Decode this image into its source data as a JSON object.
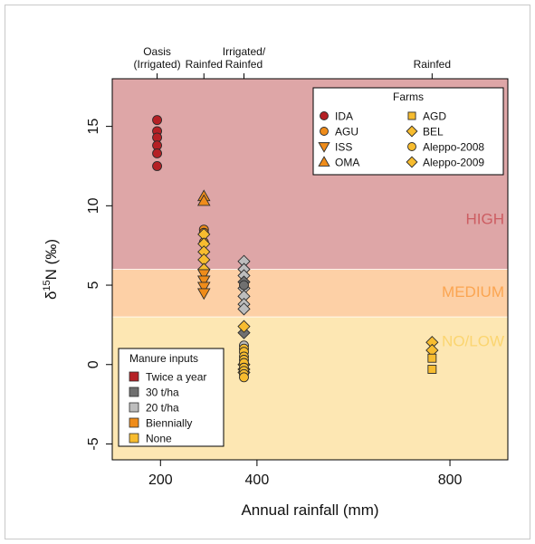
{
  "chart_data": {
    "type": "scatter",
    "xlabel": "Annual rainfall (mm)",
    "ylabel": {
      "prefix": "δ",
      "sup": "15",
      "suffix": "N (‰)"
    },
    "xlim": [
      100,
      920
    ],
    "ylim": [
      -6,
      18
    ],
    "x_ticks": [
      200,
      400,
      800
    ],
    "y_ticks": [
      -5,
      0,
      5,
      10,
      15
    ],
    "grid": false,
    "top_axis_labels": [
      {
        "x": 193,
        "lines": [
          "Oasis",
          "(Irrigated)"
        ]
      },
      {
        "x": 290,
        "lines": [
          "Rainfed"
        ]
      },
      {
        "x": 373,
        "lines": [
          "Irrigated/",
          "Rainfed"
        ]
      },
      {
        "x": 763,
        "lines": [
          "Rainfed"
        ]
      }
    ],
    "zones": [
      {
        "label": "HIGH",
        "from": 6,
        "to": 18,
        "color": "#dea6a7",
        "label_color": "#cc5d62"
      },
      {
        "label": "MEDIUM",
        "from": 3,
        "to": 6,
        "color": "#fdd0a6",
        "label_color": "#fba551"
      },
      {
        "label": "NO/LOW",
        "from": -6,
        "to": 3,
        "color": "#fde7b3",
        "label_color": "#fbd570"
      }
    ],
    "farms_legend": {
      "title": "Farms",
      "position": "top-right",
      "entries": [
        {
          "name": "IDA",
          "shape": "circle",
          "color": "#b52025"
        },
        {
          "name": "AGU",
          "shape": "circle",
          "color": "#ef8c1a"
        },
        {
          "name": "ISS",
          "shape": "triangle-down",
          "color": "#ef8c1a"
        },
        {
          "name": "OMA",
          "shape": "triangle-up",
          "color": "#ef8c1a"
        },
        {
          "name": "AGD",
          "shape": "square",
          "color": "#f7bc2f"
        },
        {
          "name": "BEL",
          "shape": "diamond",
          "color": "#f7bc2f"
        },
        {
          "name": "Aleppo-2008",
          "shape": "circle",
          "color": "#f7bc2f"
        },
        {
          "name": "Aleppo-2009",
          "shape": "diamond",
          "color": "#f7bc2f"
        }
      ]
    },
    "manure_legend": {
      "title": "Manure inputs",
      "position": "bottom-left",
      "entries": [
        {
          "name": "Twice a year",
          "color": "#b52025"
        },
        {
          "name": "30 t/ha",
          "color": "#707070"
        },
        {
          "name": "20 t/ha",
          "color": "#bdbdbd"
        },
        {
          "name": "Biennially",
          "color": "#ef8c1a"
        },
        {
          "name": "None",
          "color": "#f7bc2f"
        }
      ]
    },
    "series": [
      {
        "farm": "IDA",
        "shape": "circle",
        "color": "#b52025",
        "points": [
          [
            193,
            15.4
          ],
          [
            193,
            14.7
          ],
          [
            193,
            14.3
          ],
          [
            193,
            13.8
          ],
          [
            193,
            13.3
          ],
          [
            193,
            12.5
          ]
        ]
      },
      {
        "farm": "OMA",
        "shape": "triangle-up",
        "color": "#ef8c1a",
        "points": [
          [
            290,
            10.6
          ],
          [
            290,
            10.3
          ]
        ]
      },
      {
        "farm": "AGU",
        "shape": "circle",
        "color": "#ef8c1a",
        "points": [
          [
            290,
            8.5
          ],
          [
            290,
            8.3
          ],
          [
            290,
            7.7
          ]
        ]
      },
      {
        "farm": "BEL",
        "shape": "diamond",
        "color": "#f7bc2f",
        "points": [
          [
            290,
            8.2
          ],
          [
            290,
            7.6
          ],
          [
            290,
            7.1
          ],
          [
            290,
            6.6
          ],
          [
            290,
            6.0
          ]
        ]
      },
      {
        "farm": "ISS",
        "shape": "triangle-down",
        "color": "#ef8c1a",
        "points": [
          [
            290,
            5.7
          ],
          [
            290,
            5.3
          ],
          [
            290,
            4.9
          ],
          [
            290,
            4.5
          ]
        ]
      },
      {
        "farm": "Aleppo-2009",
        "shape": "diamond",
        "color": "#bdbdbd",
        "points": [
          [
            373,
            6.5
          ],
          [
            373,
            6.0
          ],
          [
            373,
            5.6
          ],
          [
            373,
            4.8
          ],
          [
            373,
            4.3
          ],
          [
            373,
            3.8
          ],
          [
            373,
            3.5
          ]
        ]
      },
      {
        "farm": "Aleppo-2009",
        "shape": "diamond",
        "color": "#707070",
        "points": [
          [
            373,
            5.2
          ],
          [
            373,
            2.0
          ]
        ]
      },
      {
        "farm": "Aleppo-2008",
        "shape": "circle",
        "color": "#707070",
        "points": [
          [
            373,
            5.0
          ]
        ]
      },
      {
        "farm": "Aleppo-2008",
        "shape": "circle",
        "color": "#bdbdbd",
        "points": [
          [
            373,
            1.2
          ]
        ]
      },
      {
        "farm": "Aleppo-2009",
        "shape": "diamond",
        "color": "#f7bc2f",
        "points": [
          [
            373,
            2.4
          ],
          [
            373,
            0.0
          ],
          [
            373,
            -0.3
          ],
          [
            373,
            -0.5
          ]
        ]
      },
      {
        "farm": "Aleppo-2008",
        "shape": "circle",
        "color": "#f7bc2f",
        "points": [
          [
            373,
            1.0
          ],
          [
            373,
            0.8
          ],
          [
            373,
            0.5
          ],
          [
            373,
            0.3
          ],
          [
            373,
            0.1
          ],
          [
            373,
            -0.2
          ],
          [
            373,
            -0.4
          ],
          [
            373,
            -0.6
          ],
          [
            373,
            -0.8
          ]
        ]
      },
      {
        "farm": "BEL",
        "shape": "diamond",
        "color": "#f7bc2f",
        "points": [
          [
            763,
            1.4
          ],
          [
            763,
            0.9
          ]
        ]
      },
      {
        "farm": "AGD",
        "shape": "square",
        "color": "#f7bc2f",
        "points": [
          [
            763,
            0.4
          ],
          [
            763,
            -0.3
          ]
        ]
      }
    ]
  }
}
